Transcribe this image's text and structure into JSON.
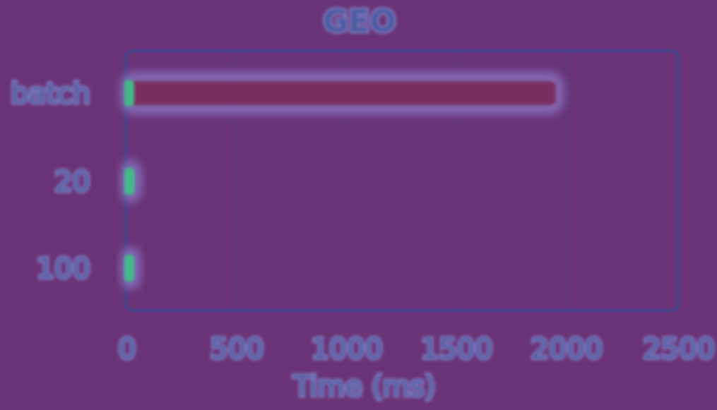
{
  "colors": {
    "background": "#6b3377",
    "plot_background": "#6a3378",
    "frame": "#4f3f87",
    "text": "#4a5aa0",
    "halo": "#7f7bbf",
    "bar_fill": "#7a2f5e",
    "bar_halo": "#8a78c4",
    "low_value_marker": "#45b88a",
    "gridline": "#5a3a80"
  },
  "chart_data": {
    "type": "bar",
    "orientation": "horizontal",
    "title": "GEO",
    "xlabel": "Time (ms)",
    "ylabel": "",
    "categories": [
      "batch",
      "20",
      "100"
    ],
    "values": [
      1950,
      30,
      15
    ],
    "xlim": [
      0,
      2500
    ],
    "xticks": [
      "0",
      "500",
      "1000",
      "1500",
      "2000",
      "2500"
    ],
    "xtick_values": [
      0,
      500,
      1000,
      1500,
      2000,
      2500
    ],
    "grid": true,
    "legend": "none"
  }
}
